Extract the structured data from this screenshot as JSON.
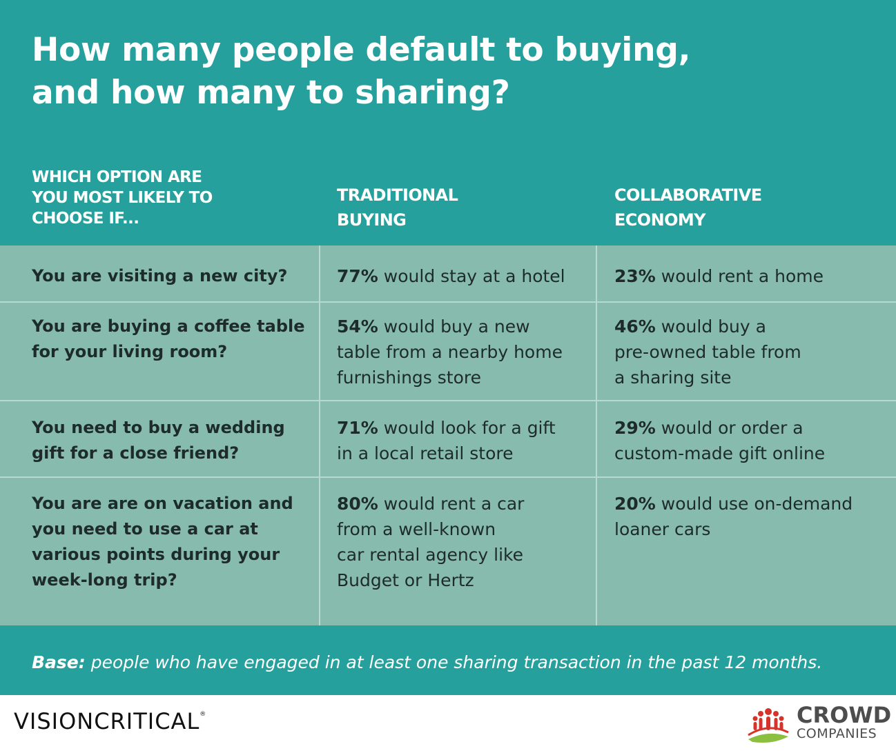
{
  "chart_data": {
    "type": "table",
    "title": [
      "How many people default to buying,",
      "and how many to sharing?"
    ],
    "columns": [
      [
        "WHICH OPTION ARE",
        "YOU MOST LIKELY TO",
        "CHOOSE IF..."
      ],
      [
        "TRADITIONAL",
        "BUYING"
      ],
      [
        "COLLABORATIVE",
        "ECONOMY"
      ]
    ],
    "rows": [
      {
        "question": [
          "You are visiting a new city?"
        ],
        "traditional": {
          "pct": "77%",
          "lines": [
            " would stay at a hotel"
          ]
        },
        "collaborative": {
          "pct": "23%",
          "lines": [
            " would rent a home"
          ]
        }
      },
      {
        "question": [
          "You are buying a coffee table",
          "for your living room?"
        ],
        "traditional": {
          "pct": "54%",
          "lines": [
            " would buy a new",
            "table from a nearby home",
            "furnishings store"
          ]
        },
        "collaborative": {
          "pct": "46%",
          "lines": [
            " would buy a",
            "pre-owned table from",
            "a sharing site"
          ]
        }
      },
      {
        "question": [
          "You need to buy a wedding",
          "gift for a close friend?"
        ],
        "traditional": {
          "pct": "71%",
          "lines": [
            " would look for a gift",
            "in a local retail store"
          ]
        },
        "collaborative": {
          "pct": "29%",
          "lines": [
            " would or order a",
            "custom-made gift online"
          ]
        }
      },
      {
        "question": [
          "You are are on vacation and",
          "you need to use a car at",
          "various points during your",
          "week-long trip?"
        ],
        "traditional": {
          "pct": "80%",
          "lines": [
            " would rent a car",
            "from a well-known",
            "car rental agency like",
            "Budget or Hertz"
          ]
        },
        "collaborative": {
          "pct": "20%",
          "lines": [
            " would use on-demand",
            "loaner cars"
          ]
        }
      }
    ],
    "footnote": {
      "label": "Base:",
      "text": " people who have engaged in at least one sharing transaction in the past 12 months."
    }
  },
  "logos": {
    "left": {
      "text": "VISIONCRITICAL",
      "mark": "®"
    },
    "right": {
      "line1": "CROWD",
      "line2": "COMPANIES",
      "icon": "crowd-people-icon"
    }
  },
  "colors": {
    "panel": "#26a09c",
    "table_body": "#86bbad",
    "divider": "#b7d9d0",
    "body_text": "#1d2b2b",
    "header_text": "#ffffff",
    "logo_red": "#d6332b",
    "logo_green": "#8cbf3f"
  }
}
